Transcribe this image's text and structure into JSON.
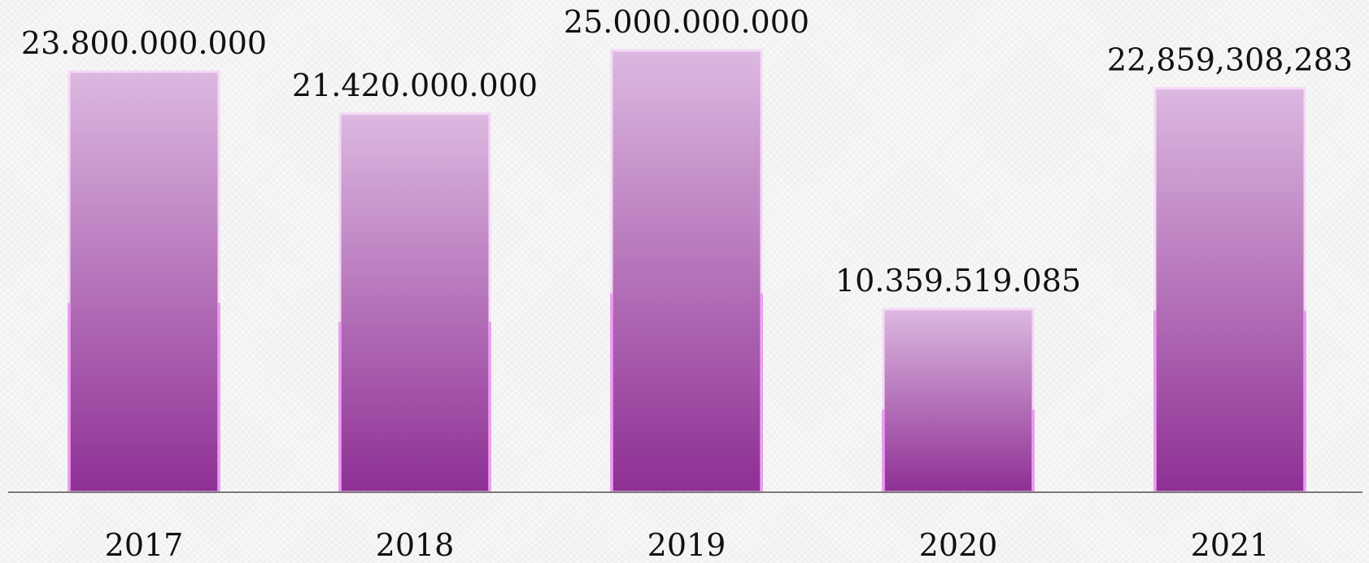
{
  "chart_data": {
    "type": "bar",
    "categories": [
      "2017",
      "2018",
      "2019",
      "2020",
      "2021"
    ],
    "values": [
      23800000000,
      21420000000,
      25000000000,
      10359519085,
      22859308283
    ],
    "value_labels": [
      "23.800.000.000",
      "21.420.000.000",
      "25.000.000.000",
      "10.359.519.085",
      "22,859,308,283"
    ],
    "ylim": [
      0,
      26000000000
    ],
    "grid": false,
    "legend": "none",
    "colors": {
      "bar_top": "#dcb8e0",
      "bar_bottom": "#8e2f94",
      "bar_edge": "#e684ec",
      "axis": "#7a7a7a"
    }
  }
}
